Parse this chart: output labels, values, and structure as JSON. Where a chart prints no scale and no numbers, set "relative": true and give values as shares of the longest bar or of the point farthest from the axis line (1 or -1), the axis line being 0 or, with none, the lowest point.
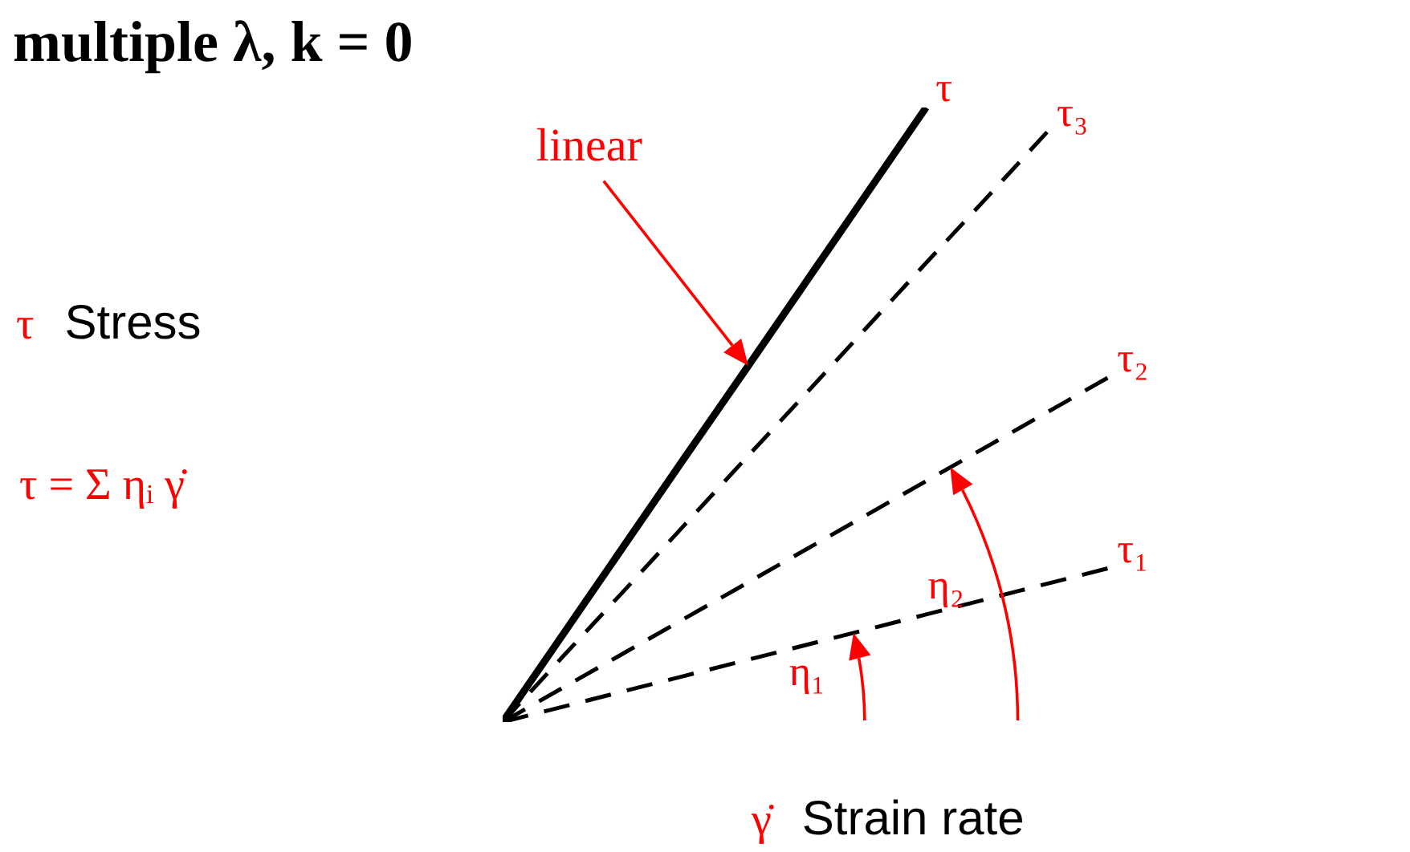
{
  "chart_data": {
    "type": "line",
    "title": "multiple λ, k = 0",
    "xlabel": "γ̇ Strain rate",
    "relative": true,
    "marker": "none",
    "categories": [
      null,
      null,
      null,
      null,
      null,
      null,
      null,
      null,
      null,
      null,
      null,
      null,
      null,
      null,
      null,
      null
    ],
    "series": [
      {
        "name": "τ",
        "color": "#000000",
        "line_style": "solid",
        "values": [
          0,
          0.143,
          0.286,
          0.429,
          0.571,
          0.714,
          0.857,
          1,
          null,
          null,
          null,
          null,
          null,
          null,
          null,
          null
        ]
      },
      {
        "name": "τ₃",
        "color": "#000000",
        "line_style": "dashed",
        "values": [
          0,
          0.107,
          0.213,
          0.32,
          0.427,
          0.533,
          0.64,
          0.747,
          0.853,
          0.96,
          null,
          null,
          null,
          null,
          null,
          null
        ]
      },
      {
        "name": "τ₂",
        "color": "#000000",
        "line_style": "dashed",
        "values": [
          0,
          0.056,
          0.112,
          0.168,
          0.224,
          0.28,
          0.336,
          0.392,
          0.448,
          0.504,
          0.56,
          null,
          null,
          null,
          null,
          null
        ]
      },
      {
        "name": "τ₁",
        "color": "#000000",
        "line_style": "dashed",
        "values": [
          0,
          0.025,
          0.05,
          0.075,
          0.1,
          0.125,
          0.15,
          0.175,
          0.2,
          0.225,
          0.25,
          null,
          null,
          null,
          null,
          null
        ]
      }
    ],
    "annotations": [
      "linear",
      "η₁",
      "η₂",
      "τ Stress",
      "τ = Σ ηᵢ γ̇"
    ]
  }
}
